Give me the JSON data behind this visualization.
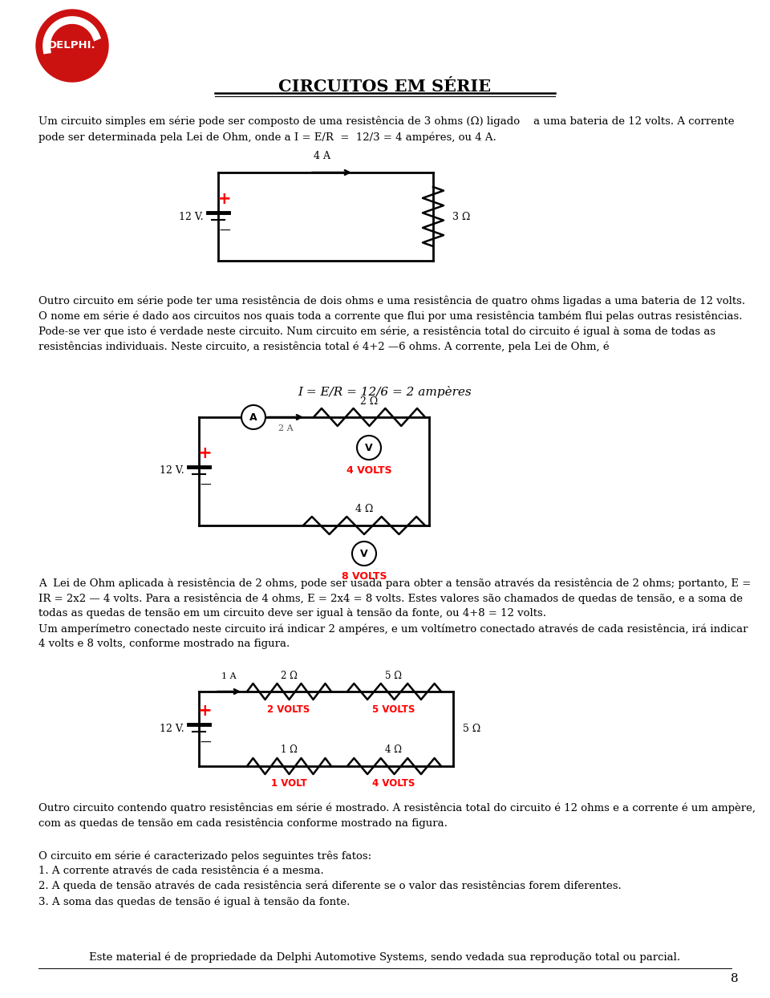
{
  "title": "CIRCUITOS EM SÉRIE",
  "bg_color": "#ffffff",
  "text_color": "#000000",
  "red_color": "#cc0000",
  "para1": "Um circuito simples em série pode ser composto de uma resistência de 3 ohms (Ω) ligado    a uma bateria de 12 volts. A corrente\npode ser determinada pela Lei de Ohm, onde a I = E/R  =  12/3 = 4 ampéres, ou 4 A.",
  "para2": "Outro circuito em série pode ter uma resistência de dois ohms e uma resistência de quatro ohms ligadas a uma bateria de 12 volts.\nO nome em série é dado aos circuitos nos quais toda a corrente que flui por uma resistência também flui pelas outras resistências.\nPode-se ver que isto é verdade neste circuito. Num circuito em série, a resistência total do circuito é igual à soma de todas as\nresistências individuais. Neste circuito, a resistência total é 4+2 —6 ohms. A corrente, pela Lei de Ohm, é",
  "formula1": "I = E/R = 12/6 = 2 ampères",
  "para3": "A  Lei de Ohm aplicada à resistência de 2 ohms, pode ser usada para obter a tensão através da resistência de 2 ohms; portanto, E =\nIR = 2x2 — 4 volts. Para a resistência de 4 ohms, E = 2x4 = 8 volts. Estes valores são chamados de quedas de tensão, e a soma de\ntodas as quedas de tensão em um circuito deve ser igual à tensão da fonte, ou 4+8 = 12 volts.\nUm amperímetro conectado neste circuito irá indicar 2 ampéres, e um voltímetro conectado através de cada resistência, irá indicar\n4 volts e 8 volts, conforme mostrado na figura.",
  "para4": "Outro circuito contendo quatro resistências em série é mostrado. A resistência total do circuito é 12 ohms e a corrente é um ampère,\ncom as quedas de tensão em cada resistência conforme mostrado na figura.",
  "para5": "O circuito em série é caracterizado pelos seguintes três fatos:\n1. A corrente através de cada resistência é a mesma.\n2. A queda de tensão através de cada resistência será diferente se o valor das resistências forem diferentes.\n3. A soma das quedas de tensão é igual à tensão da fonte.",
  "footer": "Este material é de propriedade da Delphi Automotive Systems, sendo vedada sua reprodução total ou parcial.",
  "page_num": "8"
}
